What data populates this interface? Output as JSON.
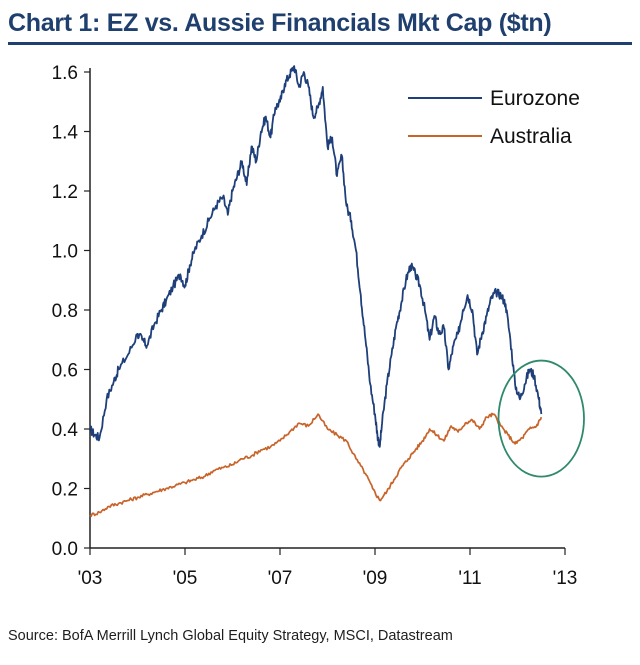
{
  "title": "Chart 1: EZ vs. Aussie Financials Mkt Cap ($tn)",
  "source": "Source: BofA Merrill Lynch Global Equity Strategy, MSCI, Datastream",
  "chart_data": {
    "type": "line",
    "title": "Chart 1: EZ vs. Aussie Financials Mkt Cap ($tn)",
    "xlabel": "",
    "ylabel": "",
    "xlim": [
      2003,
      2013
    ],
    "ylim": [
      0,
      1.6
    ],
    "x_ticks": [
      2003,
      2005,
      2007,
      2009,
      2011,
      2013
    ],
    "x_tick_labels": [
      "'03",
      "'05",
      "'07",
      "'09",
      "'11",
      "'13"
    ],
    "y_ticks": [
      0,
      0.2,
      0.4,
      0.6,
      0.8,
      1.0,
      1.2,
      1.4,
      1.6
    ],
    "y_tick_labels": [
      "0.0",
      "0.2",
      "0.4",
      "0.6",
      "0.8",
      "1.0",
      "1.2",
      "1.4",
      "1.6"
    ],
    "grid": false,
    "legend_position": "top-right",
    "series": [
      {
        "name": "Eurozone",
        "color": "#1f3f7a",
        "x": [
          2003.0,
          2003.1,
          2003.2,
          2003.35,
          2003.5,
          2003.6,
          2003.8,
          2004.0,
          2004.1,
          2004.2,
          2004.35,
          2004.5,
          2004.6,
          2004.75,
          2004.9,
          2005.0,
          2005.1,
          2005.2,
          2005.35,
          2005.5,
          2005.65,
          2005.8,
          2005.9,
          2006.0,
          2006.1,
          2006.2,
          2006.3,
          2006.4,
          2006.5,
          2006.6,
          2006.7,
          2006.8,
          2006.9,
          2007.0,
          2007.1,
          2007.2,
          2007.3,
          2007.4,
          2007.5,
          2007.6,
          2007.7,
          2007.8,
          2007.9,
          2008.0,
          2008.1,
          2008.2,
          2008.3,
          2008.4,
          2008.5,
          2008.6,
          2008.7,
          2008.8,
          2008.9,
          2009.0,
          2009.05,
          2009.1,
          2009.15,
          2009.25,
          2009.35,
          2009.45,
          2009.55,
          2009.65,
          2009.75,
          2009.85,
          2009.95,
          2010.05,
          2010.15,
          2010.25,
          2010.35,
          2010.45,
          2010.55,
          2010.65,
          2010.75,
          2010.85,
          2010.95,
          2011.05,
          2011.15,
          2011.25,
          2011.35,
          2011.45,
          2011.55,
          2011.65,
          2011.75,
          2011.85,
          2011.95,
          2012.05,
          2012.15,
          2012.25,
          2012.35,
          2012.45,
          2012.5
        ],
        "values": [
          0.4,
          0.38,
          0.37,
          0.5,
          0.56,
          0.6,
          0.65,
          0.72,
          0.7,
          0.68,
          0.75,
          0.8,
          0.83,
          0.88,
          0.92,
          0.88,
          0.95,
          1.0,
          1.05,
          1.1,
          1.15,
          1.18,
          1.12,
          1.2,
          1.25,
          1.3,
          1.22,
          1.35,
          1.3,
          1.4,
          1.45,
          1.38,
          1.48,
          1.5,
          1.56,
          1.59,
          1.62,
          1.55,
          1.6,
          1.55,
          1.45,
          1.48,
          1.55,
          1.35,
          1.38,
          1.25,
          1.32,
          1.15,
          1.1,
          1.0,
          0.85,
          0.7,
          0.55,
          0.45,
          0.38,
          0.34,
          0.42,
          0.55,
          0.65,
          0.75,
          0.82,
          0.9,
          0.95,
          0.92,
          0.88,
          0.8,
          0.7,
          0.78,
          0.72,
          0.74,
          0.6,
          0.68,
          0.72,
          0.8,
          0.85,
          0.8,
          0.65,
          0.72,
          0.78,
          0.84,
          0.86,
          0.85,
          0.82,
          0.7,
          0.55,
          0.5,
          0.55,
          0.6,
          0.58,
          0.5,
          0.45
        ]
      },
      {
        "name": "Australia",
        "color": "#c8642a",
        "x": [
          2003.0,
          2003.2,
          2003.4,
          2003.6,
          2003.8,
          2004.0,
          2004.2,
          2004.4,
          2004.6,
          2004.8,
          2005.0,
          2005.2,
          2005.4,
          2005.6,
          2005.8,
          2006.0,
          2006.2,
          2006.4,
          2006.6,
          2006.8,
          2007.0,
          2007.2,
          2007.4,
          2007.6,
          2007.8,
          2008.0,
          2008.2,
          2008.4,
          2008.6,
          2008.8,
          2008.95,
          2009.1,
          2009.25,
          2009.4,
          2009.55,
          2009.7,
          2009.85,
          2010.0,
          2010.15,
          2010.3,
          2010.45,
          2010.6,
          2010.75,
          2010.9,
          2011.05,
          2011.2,
          2011.35,
          2011.5,
          2011.65,
          2011.8,
          2011.95,
          2012.1,
          2012.25,
          2012.4,
          2012.5
        ],
        "values": [
          0.11,
          0.12,
          0.14,
          0.15,
          0.16,
          0.17,
          0.18,
          0.19,
          0.2,
          0.21,
          0.22,
          0.23,
          0.24,
          0.26,
          0.27,
          0.28,
          0.3,
          0.31,
          0.33,
          0.34,
          0.36,
          0.39,
          0.42,
          0.41,
          0.45,
          0.4,
          0.38,
          0.36,
          0.3,
          0.25,
          0.2,
          0.16,
          0.19,
          0.23,
          0.27,
          0.3,
          0.33,
          0.36,
          0.4,
          0.38,
          0.36,
          0.41,
          0.39,
          0.42,
          0.43,
          0.4,
          0.44,
          0.45,
          0.41,
          0.38,
          0.35,
          0.37,
          0.4,
          0.41,
          0.44
        ]
      }
    ],
    "annotations": [
      {
        "type": "ellipse",
        "color": "#2e8a6a",
        "x_range": [
          2011.6,
          2013.4
        ],
        "y_range": [
          0.24,
          0.63
        ]
      }
    ]
  }
}
